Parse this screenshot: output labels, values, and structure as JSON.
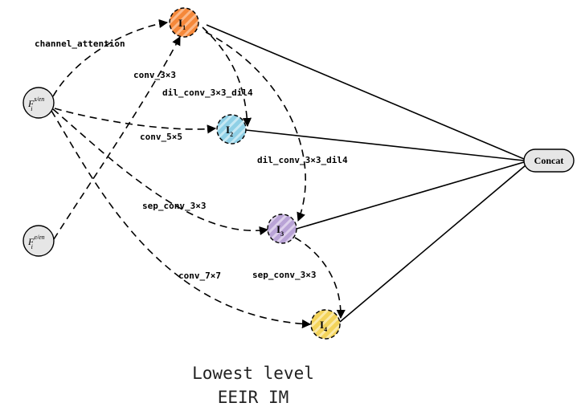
{
  "inputs": [
    {
      "id": "fs",
      "base": "F",
      "sub": "i",
      "sup": "s/en",
      "fill": "#e6e6e6"
    },
    {
      "id": "fe",
      "base": "F",
      "sub": "i",
      "sup": "e/en",
      "fill": "#e6e6e6"
    }
  ],
  "nodes": [
    {
      "id": "I1",
      "base": "I",
      "sub": "1",
      "fill": "#f5883a",
      "stripe": "#fbb98a"
    },
    {
      "id": "I2",
      "base": "I",
      "sub": "2",
      "fill": "#8fd0e6",
      "stripe": "#c6e9f4"
    },
    {
      "id": "I3",
      "base": "I",
      "sub": "3",
      "fill": "#b9a3d6",
      "stripe": "#ddd0ec"
    },
    {
      "id": "I4",
      "base": "I",
      "sub": "4",
      "fill": "#f3d35a",
      "stripe": "#fae9a8"
    }
  ],
  "concat": {
    "label": "Concat",
    "fill": "#e6e6e6"
  },
  "edge_labels": {
    "channel_attention": "channel_attention",
    "conv_3x3": "conv_3×3",
    "dil_a": "dil_conv_3×3_dil4",
    "conv_5x5": "conv_5×5",
    "dil_b": "dil_conv_3×3_dil4",
    "sep_a": "sep_conv_3×3",
    "conv_7x7": "conv_7×7",
    "sep_b": "sep_conv_3×3"
  },
  "caption": {
    "line1": "Lowest level",
    "line2": "EEIR IM"
  }
}
